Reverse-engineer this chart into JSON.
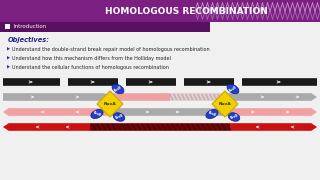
{
  "title": "HOMOLOGOUS RECOMBINATION",
  "subtitle": "Introduction",
  "bg_color": "#f0f0f0",
  "header_bg": "#7b2080",
  "header_sub_bg": "#5a1060",
  "header_text_color": "#ffffff",
  "objectives_title": "Objectives:",
  "objectives": [
    "Understand the double-strand break repair model of homologous recombination",
    "Understand how this mechanism differs from the Holliday model",
    "Understand the cellular functions of homologous recombination"
  ],
  "strand_colors": {
    "dark": "#1a1a1a",
    "gray": "#aaaaaa",
    "pink_light": "#f0a0a0",
    "red": "#cc1111",
    "red_dark": "#770000"
  },
  "ruva_color": "#f0d000",
  "ruvb_color": "#2040cc"
}
